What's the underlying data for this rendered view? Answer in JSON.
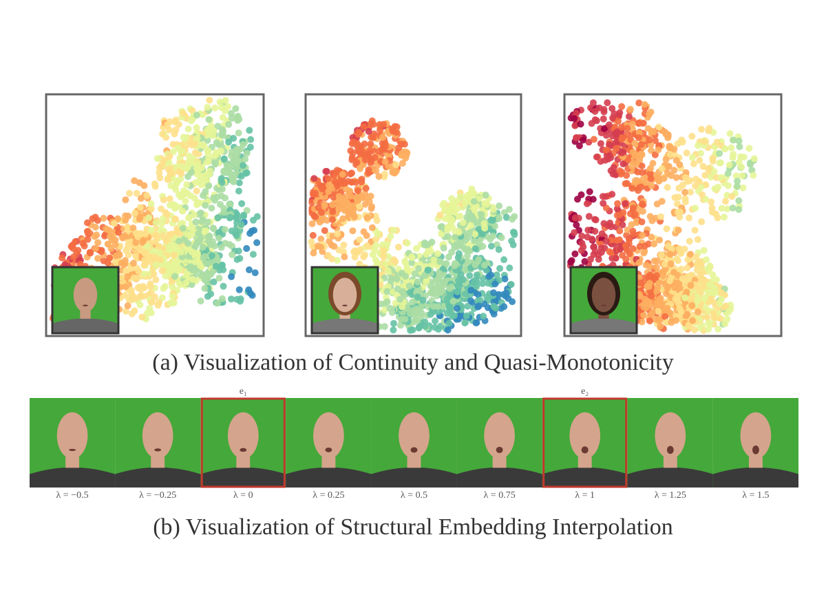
{
  "figure": {
    "panel_a": {
      "caption": "(a) Visualization of Continuity and Quasi-Monotonicity"
    },
    "panel_b": {
      "caption": "(b) Visualization of Structural Embedding Interpolation",
      "markers": [
        "e₁",
        "e₂"
      ],
      "frames": [
        "λ = −0.5",
        "λ = −0.25",
        "λ = 0",
        "λ = 0.25",
        "λ = 0.5",
        "λ = 0.75",
        "λ = 1",
        "λ = 1.25",
        "λ = 1.5"
      ]
    }
  }
}
